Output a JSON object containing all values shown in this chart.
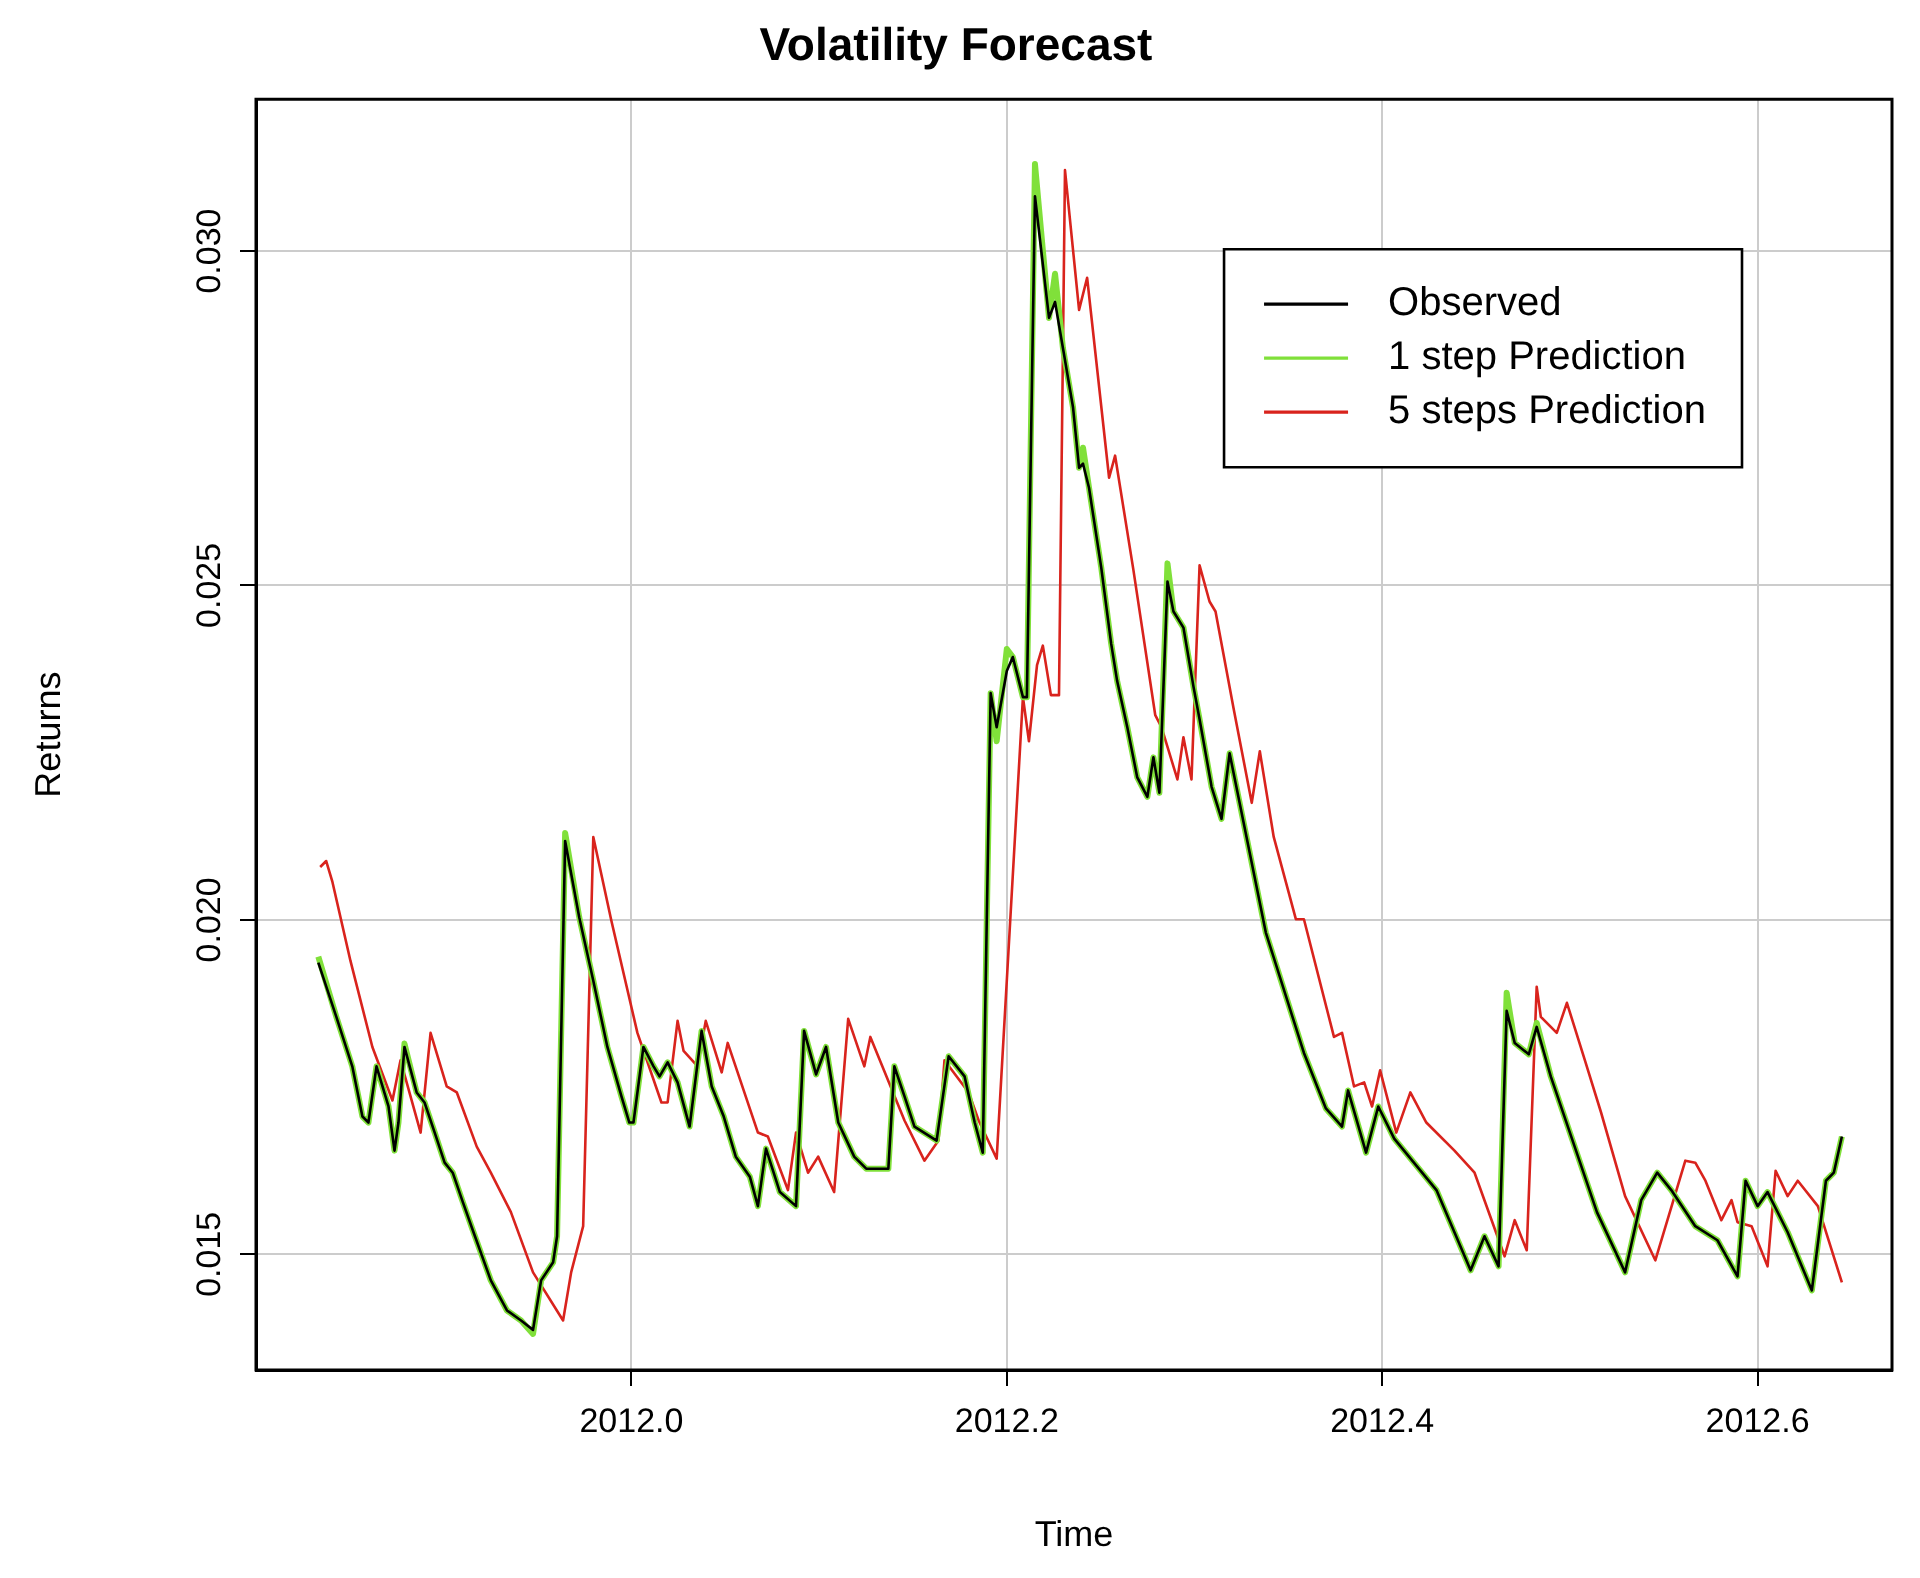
{
  "chart_data": {
    "type": "line",
    "title": "Volatility Forecast",
    "xlabel": "Time",
    "ylabel": "Returns",
    "xlim": [
      2011.8,
      2012.6716
    ],
    "ylim": [
      0.01327,
      0.03227
    ],
    "xticks": [
      {
        "value": 2012.0,
        "label": "2012.0"
      },
      2012.2,
      2012.4,
      2012.6
    ],
    "yticks": [
      0.015,
      {
        "value": 0.02,
        "label": "0.020"
      },
      0.025,
      {
        "value": 0.03,
        "label": "0.030"
      }
    ],
    "grid": true,
    "legend": "top right",
    "marker": "none",
    "line_style": "solid",
    "series": [
      {
        "name": "Observed",
        "color": "#000000",
        "x": [
          2011.8332,
          2011.8428,
          2011.8513,
          2011.8567,
          2011.8599,
          2011.8642,
          2011.8706,
          2011.8738,
          2011.8759,
          2011.8791,
          2011.8856,
          2011.8898,
          2011.8952,
          2011.9005,
          2011.9048,
          2011.9102,
          2011.9155,
          2011.9251,
          2011.9337,
          2011.9412,
          2011.9476,
          2011.9519,
          2011.9583,
          2011.9604,
          2011.9647,
          2011.9722,
          2011.9797,
          2011.9872,
          2011.9947,
          2011.9989,
          2012.0011,
          2012.0064,
          2012.0118,
          2012.015,
          2012.0193,
          2012.0246,
          2012.031,
          2012.0374,
          2012.0428,
          2012.0492,
          2012.0556,
          2012.0631,
          2012.0674,
          2012.0717,
          2012.0791,
          2012.0877,
          2012.092,
          2012.0984,
          2012.1037,
          2012.1102,
          2012.1187,
          2012.1251,
          2012.1369,
          2012.1401,
          2012.1455,
          2012.1508,
          2012.1626,
          2012.169,
          2012.1775,
          2012.1829,
          2012.1872,
          2012.1914,
          2012.1946,
          2012.2,
          2012.2032,
          2012.2086,
          2012.2107,
          2012.215,
          2012.2225,
          2012.2257,
          2012.2299,
          2012.2353,
          2012.2385,
          2012.2406,
          2012.2438,
          2012.2503,
          2012.2556,
          2012.2588,
          2012.2642,
          2012.2695,
          2012.2749,
          2012.2781,
          2012.2813,
          2012.2856,
          2012.2888,
          2012.2941,
          2012.2995,
          2012.3027,
          2012.3091,
          2012.3144,
          2012.3187,
          2012.338,
          2012.3583,
          2012.37,
          2012.3786,
          2012.3818,
          2012.3914,
          2012.3979,
          2012.4064,
          2012.4289,
          2012.4471,
          2012.4545,
          2012.462,
          2012.4663,
          2012.4706,
          2012.4781,
          2012.4823,
          2012.4898,
          2012.5144,
          2012.5294,
          2012.538,
          2012.5465,
          2012.554,
          2012.5668,
          2012.5786,
          2012.5893,
          2012.5936,
          2012.6,
          2012.6053,
          2012.616,
          2012.6289,
          2012.6364,
          2012.6406,
          2012.6449
        ],
        "values": [
          0.01936,
          0.01855,
          0.01781,
          0.01706,
          0.01697,
          0.01781,
          0.01721,
          0.01655,
          0.01697,
          0.0181,
          0.01742,
          0.01727,
          0.01682,
          0.01637,
          0.01622,
          0.01578,
          0.01536,
          0.01461,
          0.01416,
          0.01401,
          0.01387,
          0.01461,
          0.01488,
          0.01527,
          0.02118,
          0.02004,
          0.01909,
          0.0181,
          0.01736,
          0.01697,
          0.01697,
          0.0181,
          0.01781,
          0.01766,
          0.01787,
          0.01757,
          0.01691,
          0.01834,
          0.01751,
          0.01706,
          0.01646,
          0.01616,
          0.01572,
          0.01658,
          0.01593,
          0.01572,
          0.01834,
          0.01769,
          0.0181,
          0.01697,
          0.01646,
          0.01628,
          0.01628,
          0.01781,
          0.01736,
          0.01691,
          0.0167,
          0.01796,
          0.01766,
          0.01697,
          0.01652,
          0.02339,
          0.02288,
          0.02372,
          0.02393,
          0.02333,
          0.02333,
          0.03082,
          0.029,
          0.02924,
          0.02855,
          0.02766,
          0.02676,
          0.02682,
          0.02646,
          0.02527,
          0.02413,
          0.02357,
          0.02288,
          0.02213,
          0.02184,
          0.02243,
          0.0219,
          0.02506,
          0.02461,
          0.02437,
          0.02348,
          0.023,
          0.02199,
          0.02151,
          0.02249,
          0.01981,
          0.01801,
          0.01718,
          0.01691,
          0.01745,
          0.01652,
          0.01721,
          0.01673,
          0.01596,
          0.01476,
          0.01527,
          0.01482,
          0.01864,
          0.01816,
          0.01799,
          0.0184,
          0.01766,
          0.01563,
          0.01473,
          0.01581,
          0.01622,
          0.01596,
          0.01542,
          0.01521,
          0.01467,
          0.0161,
          0.01572,
          0.01593,
          0.01533,
          0.01446,
          0.0161,
          0.01622,
          0.01676
        ]
      },
      {
        "name": "1 step Prediction",
        "color": "#80e03a",
        "x": [
          2011.8332,
          2011.8428,
          2011.8513,
          2011.8567,
          2011.8599,
          2011.8642,
          2011.8706,
          2011.8738,
          2011.8759,
          2011.8791,
          2011.8856,
          2011.8898,
          2011.8952,
          2011.9005,
          2011.9048,
          2011.9102,
          2011.9155,
          2011.9251,
          2011.9337,
          2011.9412,
          2011.9476,
          2011.9519,
          2011.9583,
          2011.9604,
          2011.9647,
          2011.9722,
          2011.9797,
          2011.9872,
          2011.9947,
          2011.9989,
          2012.0011,
          2012.0064,
          2012.0118,
          2012.015,
          2012.0193,
          2012.0246,
          2012.031,
          2012.0374,
          2012.0428,
          2012.0492,
          2012.0556,
          2012.0631,
          2012.0674,
          2012.0717,
          2012.0791,
          2012.0877,
          2012.092,
          2012.0984,
          2012.1037,
          2012.1102,
          2012.1187,
          2012.1251,
          2012.1369,
          2012.1401,
          2012.1455,
          2012.1508,
          2012.1626,
          2012.169,
          2012.1775,
          2012.1829,
          2012.1872,
          2012.1914,
          2012.1946,
          2012.2,
          2012.2032,
          2012.2086,
          2012.2107,
          2012.215,
          2012.2225,
          2012.2257,
          2012.2299,
          2012.2353,
          2012.2385,
          2012.2406,
          2012.2438,
          2012.2503,
          2012.2556,
          2012.2588,
          2012.2642,
          2012.2695,
          2012.2749,
          2012.2781,
          2012.2813,
          2012.2856,
          2012.2888,
          2012.2941,
          2012.2995,
          2012.3027,
          2012.3091,
          2012.3144,
          2012.3187,
          2012.338,
          2012.3583,
          2012.37,
          2012.3786,
          2012.3818,
          2012.3914,
          2012.3979,
          2012.4064,
          2012.4289,
          2012.4471,
          2012.4545,
          2012.462,
          2012.4663,
          2012.4706,
          2012.4781,
          2012.4823,
          2012.4898,
          2012.5144,
          2012.5294,
          2012.538,
          2012.5465,
          2012.554,
          2012.5668,
          2012.5786,
          2012.5893,
          2012.5936,
          2012.6,
          2012.6053,
          2012.616,
          2012.6289,
          2012.6364,
          2012.6406,
          2012.6449
        ],
        "values": [
          0.01945,
          0.01855,
          0.01781,
          0.01706,
          0.01697,
          0.01781,
          0.01721,
          0.01655,
          0.01697,
          0.01815,
          0.01742,
          0.01727,
          0.01682,
          0.01637,
          0.01622,
          0.01578,
          0.01536,
          0.01461,
          0.01416,
          0.01401,
          0.01381,
          0.01461,
          0.01488,
          0.01527,
          0.0213,
          0.02004,
          0.01909,
          0.0181,
          0.01736,
          0.01697,
          0.01697,
          0.0181,
          0.01781,
          0.01766,
          0.01787,
          0.01757,
          0.01691,
          0.01834,
          0.01751,
          0.01706,
          0.01646,
          0.01616,
          0.01572,
          0.01658,
          0.01593,
          0.01572,
          0.01834,
          0.01769,
          0.0181,
          0.01697,
          0.01646,
          0.01628,
          0.01628,
          0.01781,
          0.01736,
          0.01691,
          0.0167,
          0.01796,
          0.01766,
          0.01697,
          0.01652,
          0.02339,
          0.02267,
          0.02405,
          0.02393,
          0.02333,
          0.02333,
          0.0313,
          0.029,
          0.02966,
          0.02855,
          0.02766,
          0.02676,
          0.02706,
          0.02646,
          0.02527,
          0.02413,
          0.02357,
          0.02288,
          0.02213,
          0.02184,
          0.02243,
          0.0219,
          0.02533,
          0.02461,
          0.02437,
          0.02348,
          0.023,
          0.02199,
          0.02151,
          0.02249,
          0.01981,
          0.01801,
          0.01718,
          0.01691,
          0.01745,
          0.01652,
          0.01721,
          0.01673,
          0.01596,
          0.01476,
          0.01527,
          0.01482,
          0.01891,
          0.01816,
          0.01799,
          0.01846,
          0.01766,
          0.01563,
          0.01473,
          0.01581,
          0.01622,
          0.01596,
          0.01542,
          0.01521,
          0.01467,
          0.0161,
          0.01572,
          0.01593,
          0.01533,
          0.01446,
          0.0161,
          0.01622,
          0.01676
        ]
      },
      {
        "name": "5 steps Prediction",
        "color": "#d9231d",
        "x": [
          2011.8342,
          2011.8374,
          2011.8406,
          2011.8503,
          2011.862,
          2011.8727,
          2011.877,
          2011.8877,
          2011.893,
          2011.9016,
          2011.907,
          2011.9176,
          2011.9251,
          2011.9358,
          2011.9476,
          2011.9636,
          2011.9679,
          2011.9743,
          2011.9797,
          2011.9893,
          2012.0032,
          2012.016,
          2012.0193,
          2012.0246,
          2012.0278,
          2012.0353,
          2012.0396,
          2012.0481,
          2012.0513,
          2012.0674,
          2012.0727,
          2012.0834,
          2012.0877,
          2012.0941,
          2012.0995,
          2012.108,
          2012.1155,
          2012.1241,
          2012.1273,
          2012.1455,
          2012.1561,
          2012.1636,
          2012.1668,
          2012.1797,
          2012.185,
          2012.1946,
          2012.2086,
          2012.2118,
          2012.2161,
          2012.2192,
          2012.2235,
          2012.2278,
          2012.231,
          2012.2385,
          2012.2428,
          2012.2545,
          2012.2577,
          2012.2674,
          2012.2791,
          2012.2824,
          2012.2909,
          2012.2941,
          2012.2984,
          2012.3027,
          2012.308,
          2012.3112,
          2012.3209,
          2012.3305,
          2012.3348,
          2012.3422,
          2012.354,
          2012.3583,
          2012.3743,
          2012.3786,
          2012.385,
          2012.3904,
          2012.3946,
          2012.3989,
          2012.4075,
          2012.415,
          2012.4235,
          2012.4385,
          2012.4492,
          2012.4652,
          2012.4706,
          2012.477,
          2012.4823,
          2012.4845,
          2012.493,
          2012.4984,
          2012.508,
          2012.5166,
          2012.5294,
          2012.5455,
          2012.5615,
          2012.5668,
          2012.5722,
          2012.5807,
          2012.5861,
          2012.5893,
          2012.5968,
          2012.6053,
          2012.6096,
          2012.616,
          2012.6214,
          2012.6321,
          2012.6449
        ],
        "values": [
          0.02079,
          0.02088,
          0.02058,
          0.01939,
          0.0181,
          0.0173,
          0.0179,
          0.01682,
          0.01831,
          0.01751,
          0.01742,
          0.01661,
          0.01622,
          0.01563,
          0.01473,
          0.01401,
          0.01473,
          0.01542,
          0.02124,
          0.01999,
          0.01831,
          0.01727,
          0.01727,
          0.01849,
          0.01804,
          0.01781,
          0.01849,
          0.01772,
          0.01816,
          0.01682,
          0.01676,
          0.01596,
          0.01682,
          0.01622,
          0.01646,
          0.01593,
          0.01852,
          0.01781,
          0.01825,
          0.017,
          0.0164,
          0.0167,
          0.0179,
          0.01742,
          0.017,
          0.01643,
          0.02333,
          0.02267,
          0.02381,
          0.0241,
          0.02336,
          0.02336,
          0.03121,
          0.02912,
          0.0296,
          0.02661,
          0.02694,
          0.02524,
          0.02306,
          0.02288,
          0.0221,
          0.02273,
          0.0221,
          0.0253,
          0.02476,
          0.02461,
          0.02315,
          0.02175,
          0.02252,
          0.02124,
          0.02001,
          0.02001,
          0.01825,
          0.01831,
          0.01751,
          0.01757,
          0.01721,
          0.01775,
          0.01682,
          0.01742,
          0.01697,
          0.01655,
          0.01622,
          0.01497,
          0.01551,
          0.01506,
          0.019,
          0.01855,
          0.01831,
          0.01876,
          0.0179,
          0.01712,
          0.01587,
          0.01491,
          0.0164,
          0.01637,
          0.0161,
          0.01551,
          0.01581,
          0.01548,
          0.01542,
          0.01482,
          0.01625,
          0.01587,
          0.0161,
          0.01572,
          0.01458
        ]
      }
    ]
  }
}
